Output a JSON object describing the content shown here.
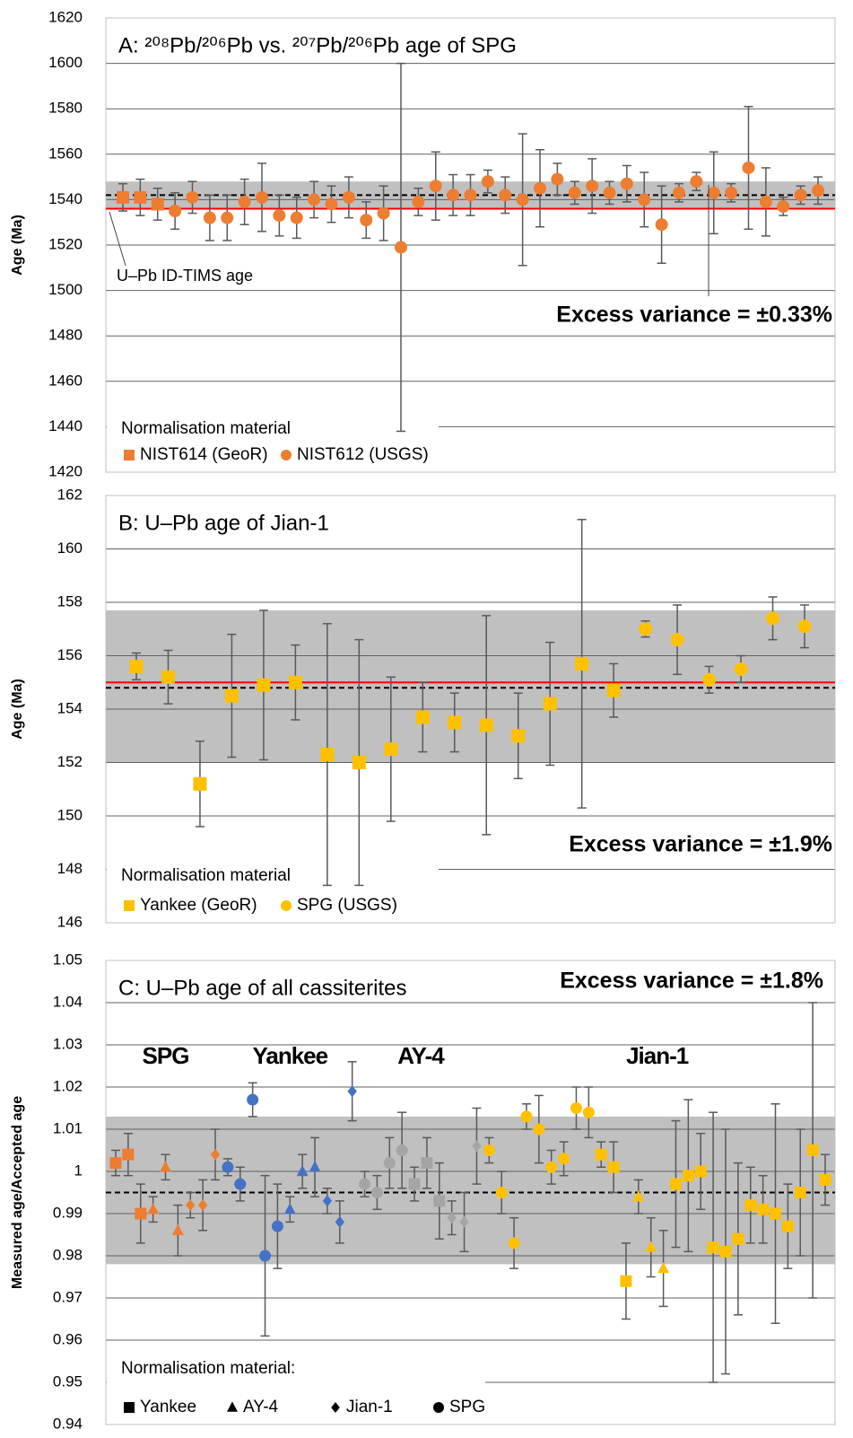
{
  "chart_data": [
    {
      "type": "scatter",
      "title": "A: ²⁰⁸Pb/²⁰⁶Pb vs. ²⁰⁷Pb/²⁰⁶Pb age of SPG",
      "y_label": "Age (Ma)",
      "ylim": [
        1420,
        1620
      ],
      "yticks": [
        1420,
        1440,
        1460,
        1480,
        1500,
        1520,
        1540,
        1560,
        1580,
        1600,
        1620
      ],
      "grid": true,
      "band": [
        1536,
        1548
      ],
      "band_color": "#c0c0c0",
      "reference_line": 1536,
      "reference_color": "#ff0000",
      "mean_line": 1542,
      "annotations": [
        "U–Pb ID-TIMS age",
        "Excess variance = ±0.33%"
      ],
      "legend_title": "Normalisation material",
      "legend": "lower left",
      "series": [
        {
          "name": "NIST614 (GeoR)",
          "marker": "square",
          "color": "#ed7d31",
          "values": [
            1541,
            1541,
            1538,
            null,
            null,
            null,
            null,
            null,
            null,
            null,
            null,
            null,
            null,
            null,
            null,
            null,
            null,
            null,
            null,
            null,
            null,
            null,
            null,
            null,
            null,
            null,
            null,
            null,
            null,
            null,
            null,
            null,
            null,
            null,
            null,
            null,
            null,
            null,
            null,
            null,
            null
          ],
          "errors": [
            6,
            8,
            7,
            null,
            null,
            null,
            null,
            null,
            null,
            null,
            null,
            null,
            null,
            null,
            null,
            null,
            null,
            null,
            null,
            null,
            null,
            null,
            null,
            null,
            null,
            null,
            null,
            null,
            null,
            null,
            null,
            null,
            null,
            null,
            null,
            null,
            null,
            null,
            null,
            null,
            null
          ]
        },
        {
          "name": "NIST612 (USGS)",
          "marker": "circle",
          "color": "#ed7d31",
          "values": [
            null,
            null,
            null,
            1535,
            1541,
            1532,
            1532,
            1539,
            1541,
            1533,
            1532,
            1540,
            1538,
            1541,
            1531,
            1534,
            1519,
            1539,
            1546,
            1542,
            1542,
            1548,
            1542,
            1540,
            1545,
            1549,
            1543,
            1546,
            1543,
            1547,
            1540,
            1529,
            1543,
            1548,
            1543,
            1543,
            1554,
            1539,
            1537,
            1542,
            1544
          ],
          "errors": [
            null,
            null,
            null,
            8,
            7,
            10,
            10,
            10,
            15,
            9,
            9,
            8,
            8,
            9,
            8,
            12,
            81,
            6,
            15,
            9,
            9,
            5,
            8,
            29,
            17,
            7,
            5,
            12,
            5,
            8,
            12,
            17,
            4,
            4,
            18,
            4,
            27,
            15,
            4,
            4,
            6
          ]
        }
      ]
    },
    {
      "type": "scatter",
      "title": "B: U–Pb age of Jian-1",
      "y_label": "Age (Ma)",
      "ylim": [
        146,
        162
      ],
      "yticks": [
        146,
        148,
        150,
        152,
        154,
        156,
        158,
        160,
        162
      ],
      "grid": true,
      "band": [
        152.0,
        157.7
      ],
      "band_color": "#c0c0c0",
      "reference_line": 155.0,
      "reference_color": "#ff0000",
      "mean_line": 154.8,
      "annotations": [
        "Excess variance = ±1.9%"
      ],
      "legend_title": "Normalisation material",
      "legend": "lower left",
      "series": [
        {
          "name": "Yankee (GeoR)",
          "marker": "square",
          "color": "#ffc000",
          "values": [
            155.6,
            155.2,
            151.2,
            154.5,
            154.9,
            155.0,
            152.3,
            152.0,
            152.5,
            153.7,
            153.5,
            153.4,
            153.0,
            154.2,
            155.7,
            154.7,
            null,
            null,
            null,
            null,
            null,
            null
          ],
          "errors": [
            0.5,
            1.0,
            1.6,
            2.3,
            2.8,
            1.4,
            4.9,
            4.6,
            2.7,
            1.3,
            1.1,
            4.1,
            1.6,
            2.3,
            5.4,
            1.0,
            null,
            null,
            null,
            null,
            null,
            null
          ]
        },
        {
          "name": "SPG (USGS)",
          "marker": "circle",
          "color": "#ffc000",
          "values": [
            null,
            null,
            null,
            null,
            null,
            null,
            null,
            null,
            null,
            null,
            null,
            null,
            null,
            null,
            null,
            null,
            157.0,
            156.6,
            155.1,
            155.5,
            157.4,
            157.1
          ],
          "errors": [
            null,
            null,
            null,
            null,
            null,
            null,
            null,
            null,
            null,
            null,
            null,
            null,
            null,
            null,
            null,
            null,
            0.3,
            1.3,
            0.5,
            0.5,
            0.8,
            0.8
          ]
        }
      ]
    },
    {
      "type": "scatter",
      "title": "C: U–Pb age of all cassiterites",
      "y_label": "Measured age/Accepted age",
      "ylim": [
        0.94,
        1.05
      ],
      "yticks": [
        0.94,
        0.95,
        0.96,
        0.97,
        0.98,
        0.99,
        1,
        1.01,
        1.02,
        1.03,
        1.04,
        1.05
      ],
      "grid": true,
      "band": [
        0.978,
        1.013
      ],
      "band_color": "#c0c0c0",
      "mean_line": 0.995,
      "annotations": [
        "Excess variance = ±1.8%"
      ],
      "legend_title": "Normalisation material:",
      "legend": "lower left",
      "legend_items": [
        {
          "name": "Yankee",
          "marker": "square"
        },
        {
          "name": "AY-4",
          "marker": "triangle"
        },
        {
          "name": "Jian-1",
          "marker": "diamond"
        },
        {
          "name": "SPG",
          "marker": "circle"
        }
      ],
      "series": [
        {
          "name": "SPG",
          "color": "#ed7d31",
          "markers": [
            "square",
            "square",
            "square",
            "triangle",
            "triangle",
            "triangle",
            "diamond",
            "diamond",
            "diamond"
          ],
          "values": [
            1.002,
            1.004,
            0.99,
            0.991,
            1.001,
            0.986,
            0.992,
            0.992,
            1.004
          ],
          "errors": [
            0.003,
            0.005,
            0.007,
            0.003,
            0.003,
            0.006,
            0.003,
            0.006,
            0.006
          ]
        },
        {
          "name": "Yankee",
          "color": "#4472c4",
          "markers": [
            "circle",
            "circle",
            "circle",
            "circle",
            "circle",
            "triangle",
            "triangle",
            "triangle",
            "diamond",
            "diamond",
            "diamond"
          ],
          "values": [
            1.001,
            0.997,
            1.017,
            0.98,
            0.987,
            0.991,
            1.0,
            1.001,
            0.993,
            0.988,
            1.019
          ],
          "errors": [
            0.002,
            0.004,
            0.004,
            0.019,
            0.01,
            0.003,
            0.004,
            0.007,
            0.003,
            0.005,
            0.007
          ]
        },
        {
          "name": "AY-4",
          "color": "#a5a5a5",
          "markers": [
            "circle",
            "circle",
            "circle",
            "circle",
            "square",
            "square",
            "square",
            "diamond",
            "diamond",
            "diamond"
          ],
          "values": [
            0.997,
            0.995,
            1.002,
            1.005,
            0.997,
            1.002,
            0.993,
            0.989,
            0.988,
            1.006
          ],
          "errors": [
            0.003,
            0.004,
            0.006,
            0.009,
            0.004,
            0.006,
            0.009,
            0.004,
            0.007,
            0.009
          ]
        },
        {
          "name": "Jian-1",
          "color": "#ffc000",
          "markers": [
            "circle",
            "circle",
            "circle",
            "circle",
            "circle",
            "circle",
            "circle",
            "circle",
            "circle",
            "square",
            "square",
            "square",
            "triangle",
            "triangle",
            "triangle",
            "square",
            "square",
            "square",
            "square",
            "square",
            "square",
            "square",
            "square",
            "square",
            "square",
            "square",
            "square",
            "square"
          ],
          "values": [
            1.005,
            0.995,
            0.983,
            1.013,
            1.01,
            1.001,
            1.003,
            1.015,
            1.014,
            1.004,
            1.001,
            0.974,
            0.994,
            0.982,
            0.977,
            0.997,
            0.999,
            1.0,
            0.982,
            0.981,
            0.984,
            0.992,
            0.991,
            0.99,
            0.987,
            0.995,
            1.005,
            0.998
          ],
          "errors": [
            0.003,
            0.005,
            0.006,
            0.003,
            0.008,
            0.004,
            0.004,
            0.005,
            0.006,
            0.003,
            0.006,
            0.009,
            0.004,
            0.007,
            0.009,
            0.015,
            0.018,
            0.009,
            0.032,
            0.029,
            0.018,
            0.009,
            0.008,
            0.026,
            0.01,
            0.015,
            0.035,
            0.006
          ]
        }
      ]
    }
  ]
}
